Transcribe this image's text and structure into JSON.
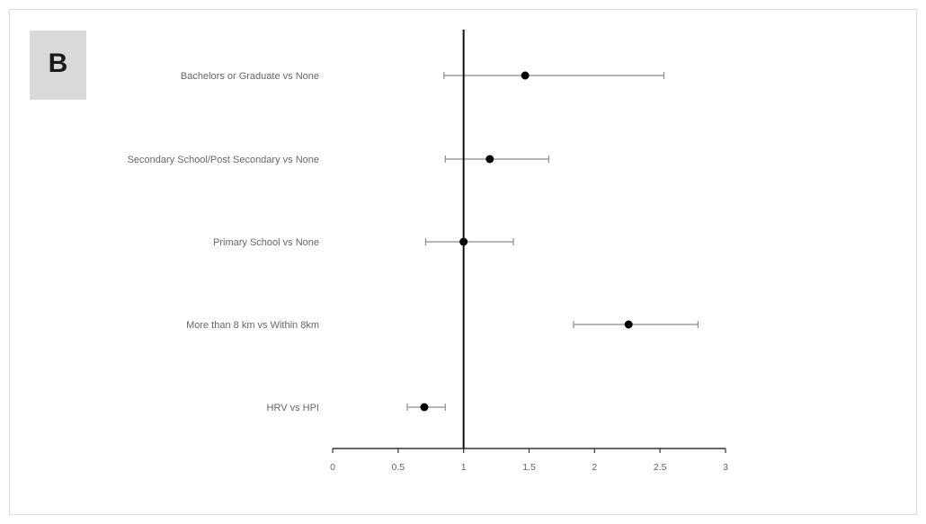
{
  "panel_label": "B",
  "chart_data": {
    "type": "scatter",
    "subtype": "forest-plot",
    "title": "",
    "xlabel": "",
    "ylabel": "",
    "xlim": [
      0,
      3
    ],
    "xticks": [
      "0",
      "0.5",
      "1",
      "1.5",
      "2",
      "2.5",
      "3"
    ],
    "reference_line_x": 1,
    "grid": false,
    "legend": "none",
    "colors": {
      "points": "#000000",
      "error_bars": "#8c8c8c",
      "axis": "#333333"
    },
    "categories": [
      "Bachelors or Graduate vs None",
      "Secondary School/Post Secondary vs None",
      "Primary School vs None",
      "More than 8 km vs Within 8km",
      "HRV vs HPI"
    ],
    "estimates": [
      1.47,
      1.2,
      1.0,
      2.26,
      0.7
    ],
    "ci_lower": [
      0.85,
      0.86,
      0.71,
      1.84,
      0.57
    ],
    "ci_upper": [
      2.53,
      1.65,
      1.38,
      2.79,
      0.86
    ]
  }
}
